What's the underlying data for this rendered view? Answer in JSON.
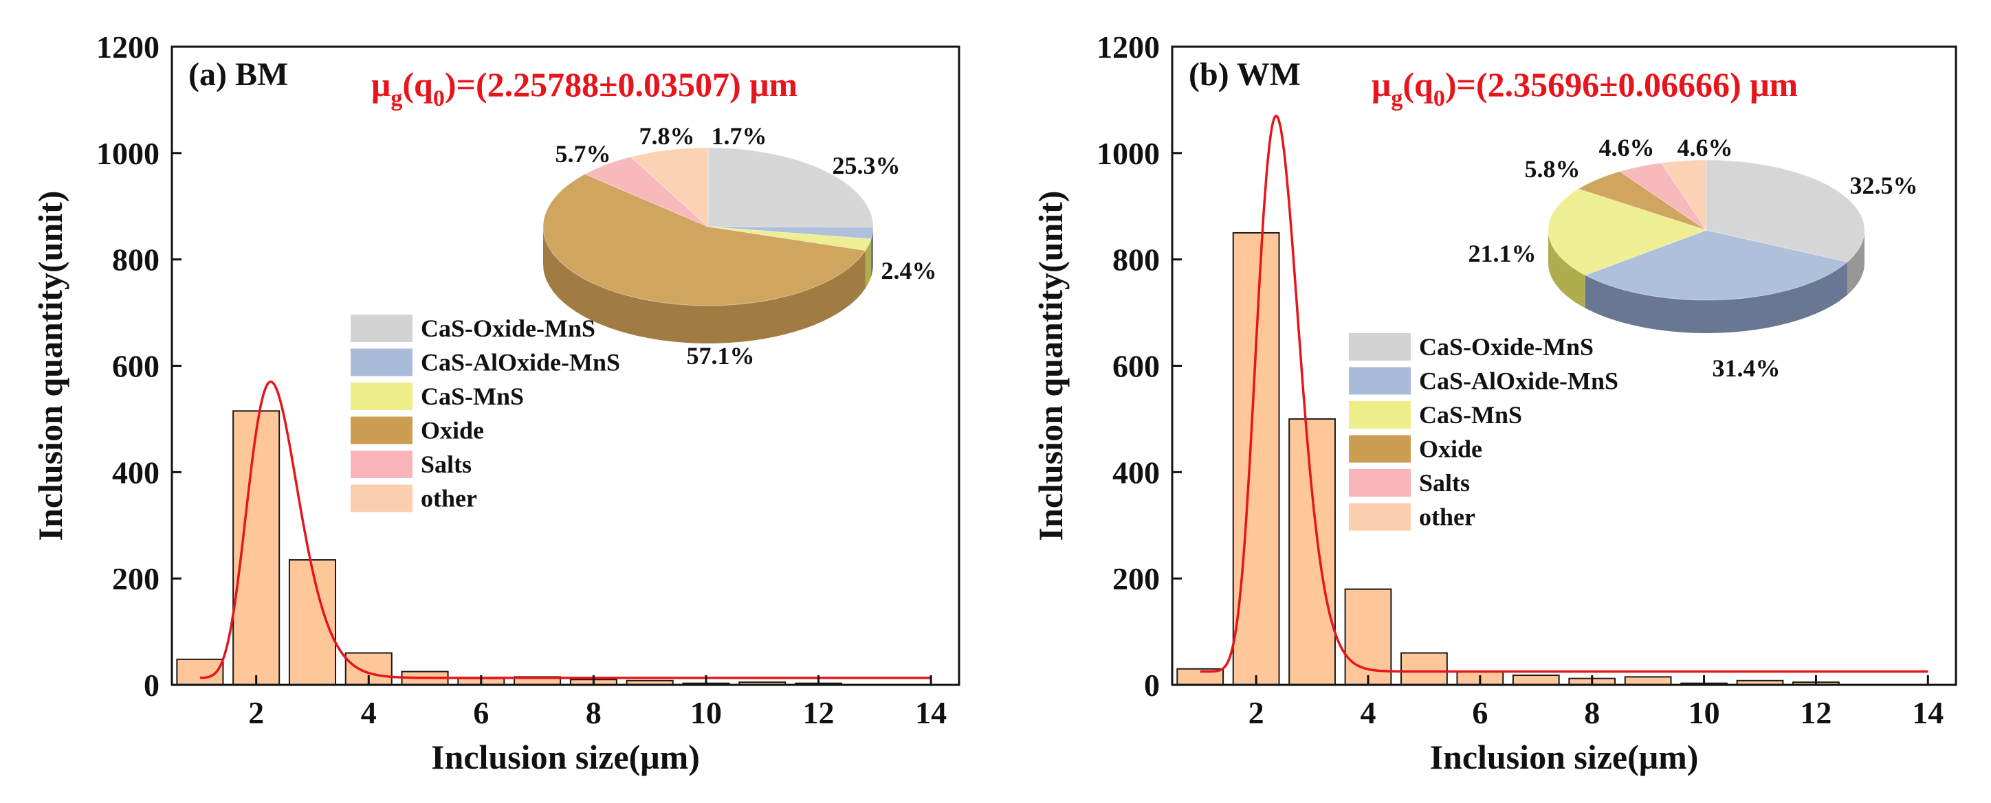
{
  "chart_data": [
    {
      "type": "bar",
      "panel_label": "(a) BM",
      "annotation": {
        "prefix": "μ",
        "sub1": "g",
        "open": "(q",
        "sub2": "0",
        "rest": ")=(2.25788±0.03507) μm"
      },
      "xlabel": "Inclusion size(μm)",
      "ylabel": "Inclusion quantity(unit)",
      "xlim": [
        0.5,
        14.5
      ],
      "ylim": [
        0,
        1200
      ],
      "xticks": [
        2,
        4,
        6,
        8,
        10,
        12,
        14
      ],
      "yticks": [
        0,
        200,
        400,
        600,
        800,
        1000,
        1200
      ],
      "bins": [
        1,
        2,
        3,
        4,
        5,
        6,
        7,
        8,
        9,
        10,
        11,
        12,
        13
      ],
      "values": [
        48,
        515,
        235,
        60,
        25,
        12,
        15,
        10,
        8,
        3,
        5,
        3,
        0
      ],
      "fit": {
        "type": "lognormal",
        "mu_g": 2.25788,
        "peak": 570,
        "baseline": 13,
        "sigma": 0.2
      },
      "pie": {
        "slices": [
          {
            "name": "CaS-Oxide-MnS",
            "value": 25.3,
            "label": "25.3%"
          },
          {
            "name": "CaS-AlOxide-MnS",
            "value": 2.4,
            "label": ""
          },
          {
            "name": "CaS-MnS",
            "value": 2.4,
            "label": "2.4%"
          },
          {
            "name": "Oxide",
            "value": 57.1,
            "label": "57.1%"
          },
          {
            "name": "Salts",
            "value": 5.7,
            "label": "5.7%"
          },
          {
            "name": "other",
            "value": 7.8,
            "label": "7.8%"
          }
        ],
        "extra_label": "1.7%"
      },
      "legend": [
        "CaS-Oxide-MnS",
        "CaS-AlOxide-MnS",
        "CaS-MnS",
        "Oxide",
        "Salts",
        "other"
      ]
    },
    {
      "type": "bar",
      "panel_label": "(b) WM",
      "annotation": {
        "prefix": "μ",
        "sub1": "g",
        "open": "(q",
        "sub2": "0",
        "rest": ")=(2.35696±0.06666) μm"
      },
      "xlabel": "Inclusion size(μm)",
      "ylabel": "Inclusion quantity(unit)",
      "xlim": [
        0.5,
        14.5
      ],
      "ylim": [
        0,
        1200
      ],
      "xticks": [
        2,
        4,
        6,
        8,
        10,
        12,
        14
      ],
      "yticks": [
        0,
        200,
        400,
        600,
        800,
        1000,
        1200
      ],
      "bins": [
        1,
        2,
        3,
        4,
        5,
        6,
        7,
        8,
        9,
        10,
        11,
        12,
        13
      ],
      "values": [
        30,
        850,
        500,
        180,
        60,
        25,
        18,
        12,
        15,
        3,
        8,
        5,
        0
      ],
      "fit": {
        "type": "lognormal",
        "mu_g": 2.35696,
        "peak": 1070,
        "baseline": 25,
        "sigma": 0.16
      },
      "pie": {
        "slices": [
          {
            "name": "CaS-Oxide-MnS",
            "value": 32.5,
            "label": "32.5%"
          },
          {
            "name": "CaS-AlOxide-MnS",
            "value": 31.4,
            "label": "31.4%"
          },
          {
            "name": "CaS-MnS",
            "value": 21.1,
            "label": "21.1%"
          },
          {
            "name": "Oxide",
            "value": 5.8,
            "label": "5.8%"
          },
          {
            "name": "Salts",
            "value": 4.6,
            "label": "4.6%"
          },
          {
            "name": "other",
            "value": 4.6,
            "label": "4.6%"
          }
        ],
        "extra_label": ""
      },
      "legend": [
        "CaS-Oxide-MnS",
        "CaS-AlOxide-MnS",
        "CaS-MnS",
        "Oxide",
        "Salts",
        "other"
      ]
    }
  ],
  "colors": {
    "bar_fill": "#fdc79a",
    "bar_stroke": "#1a1a1a",
    "fit_line": "#e8141b",
    "annotation": "#e8141b",
    "series": {
      "CaS-Oxide-MnS": "#d3d3d3",
      "CaS-AlOxide-MnS": "#a9bbd9",
      "CaS-MnS": "#eded8a",
      "Oxide": "#cc9e52",
      "Salts": "#f8b4b8",
      "other": "#fbcfae"
    },
    "series_side": {
      "CaS-Oxide-MnS": "#8f8f8f",
      "CaS-AlOxide-MnS": "#5d6c8a",
      "CaS-MnS": "#a8a840",
      "Oxide": "#9a7132",
      "Salts": "#b27378",
      "other": "#b89072"
    }
  }
}
